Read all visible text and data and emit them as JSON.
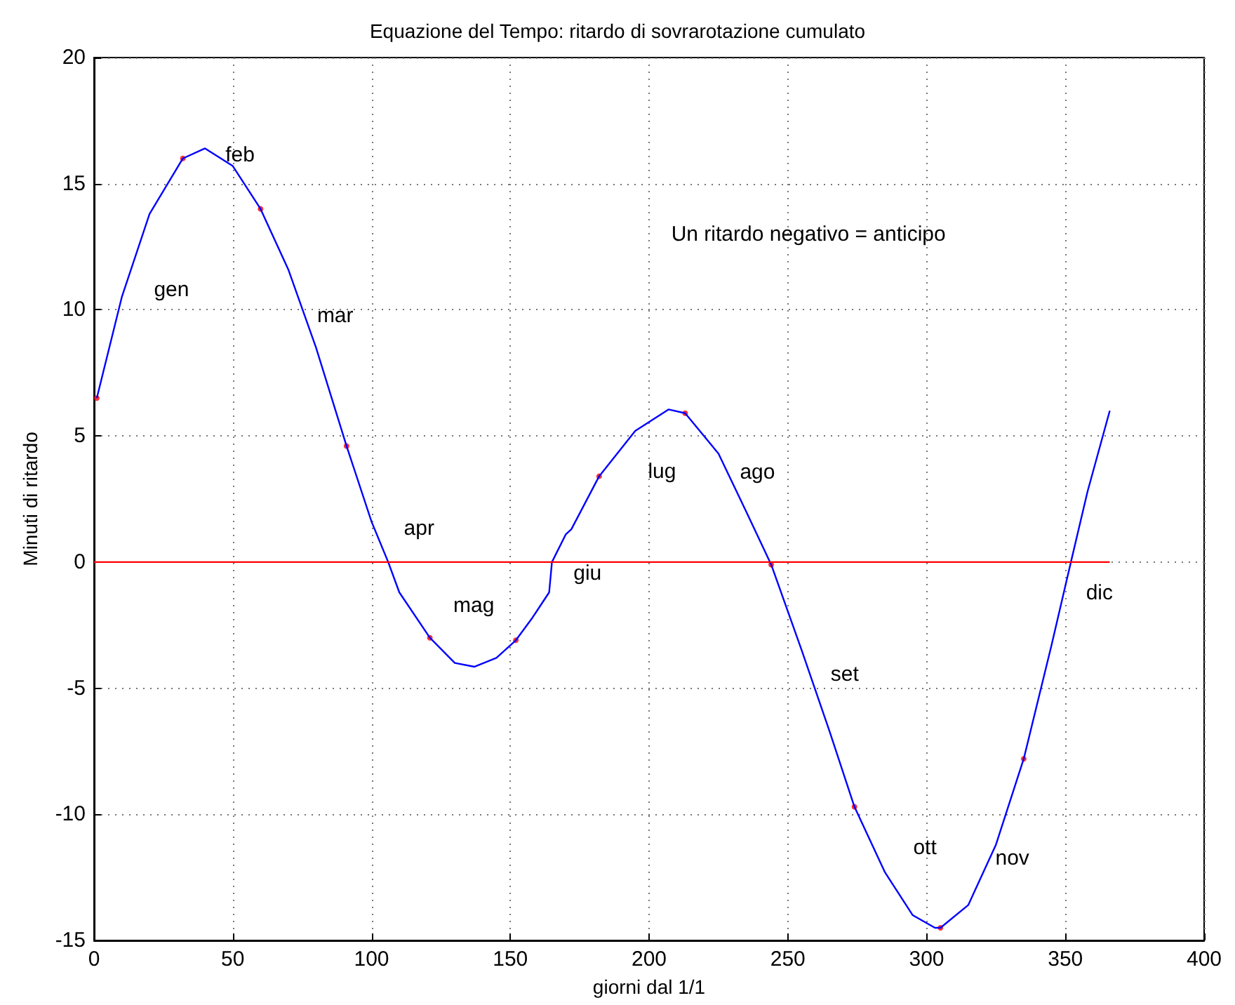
{
  "chart_data": {
    "type": "line",
    "title": "Equazione del Tempo: ritardo di sovrarotazione cumulato",
    "xlabel": "giorni dal 1/1",
    "ylabel": "Minuti di ritardo",
    "xlim": [
      0,
      400
    ],
    "xticks": [
      0,
      50,
      100,
      150,
      200,
      250,
      300,
      350,
      400
    ],
    "ylim": [
      -15,
      20
    ],
    "yticks": [
      -15,
      -10,
      -5,
      0,
      5,
      10,
      15,
      20
    ],
    "grid": true,
    "series": [
      {
        "color": "#0000ff",
        "marker": "none",
        "line_style": "solid",
        "x": [
          1,
          10,
          20,
          32,
          40,
          50,
          60,
          70,
          80,
          91,
          100,
          106,
          110,
          121,
          130,
          137,
          145,
          152,
          158,
          164,
          165,
          170,
          172,
          182,
          195,
          207,
          213,
          225,
          235,
          244,
          255,
          265,
          274,
          285,
          295,
          303,
          305,
          315,
          325,
          335,
          345,
          352,
          358,
          366
        ],
        "values": [
          6.5,
          10.5,
          13.8,
          16.0,
          16.4,
          15.7,
          14.0,
          11.6,
          8.5,
          4.6,
          1.6,
          0,
          -1.2,
          -3.0,
          -4.0,
          -4.15,
          -3.8,
          -3.1,
          -2.2,
          -1.2,
          0,
          1.1,
          1.3,
          3.4,
          5.2,
          6.05,
          5.9,
          4.3,
          2.0,
          -0.1,
          -3.5,
          -6.7,
          -9.7,
          -12.3,
          -14.0,
          -14.5,
          -14.5,
          -13.6,
          -11.2,
          -7.8,
          -3.3,
          0,
          2.8,
          6.0
        ]
      },
      {
        "color": "#ff0000",
        "marker": "none",
        "line_style": "solid",
        "x": [
          0,
          366
        ],
        "values": [
          0,
          0
        ]
      },
      {
        "type": "scatter",
        "color": "#ff0000",
        "marker": "circle",
        "x": [
          1,
          32,
          60,
          91,
          121,
          152,
          182,
          213,
          244,
          274,
          305,
          335
        ],
        "values": [
          6.5,
          16.0,
          14.0,
          4.6,
          -3.0,
          -3.1,
          3.4,
          5.9,
          -0.1,
          -9.7,
          -14.5,
          -7.8
        ]
      }
    ],
    "annotations": [
      "gen",
      "feb",
      "mar",
      "apr",
      "mag",
      "giu",
      "lug",
      "ago",
      "set",
      "ott",
      "nov",
      "dic",
      "Un ritardo negativo = anticipo"
    ]
  }
}
